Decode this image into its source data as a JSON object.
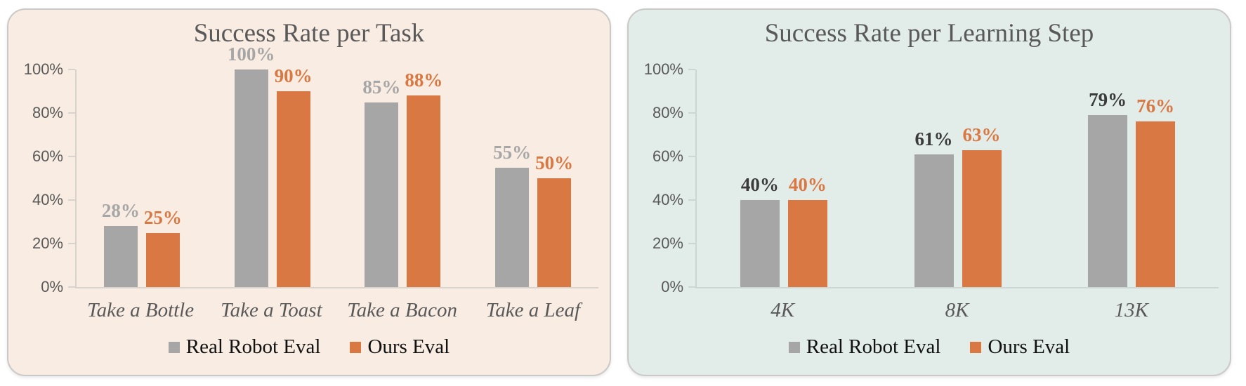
{
  "canvas": {
    "background": "#ffffff"
  },
  "chart_data": [
    {
      "type": "bar",
      "title": "Success Rate per Task",
      "panel_background": "#f9ece2",
      "categories": [
        "Take a Bottle",
        "Take a Toast",
        "Take a Bacon",
        "Take a Leaf"
      ],
      "series": [
        {
          "name": "Real Robot Eval",
          "color": "#a6a6a6",
          "label_color": "#a6a6a6",
          "values": [
            28,
            100,
            85,
            55
          ]
        },
        {
          "name": "Ours Eval",
          "color": "#d97842",
          "label_color": "#d97842",
          "values": [
            25,
            90,
            88,
            50
          ]
        }
      ],
      "yticks": [
        "100%",
        "80%",
        "60%",
        "40%",
        "20%",
        "0%"
      ],
      "ylim": [
        0,
        100
      ],
      "data_label_suffix": "%",
      "grid": false,
      "legend_position": "bottom",
      "text_color": "#595959"
    },
    {
      "type": "bar",
      "title": "Success Rate per Learning Step",
      "panel_background": "#e2ece9",
      "categories": [
        "4K",
        "8K",
        "13K"
      ],
      "series": [
        {
          "name": "Real Robot Eval",
          "color": "#a6a6a6",
          "label_color": "#3b3b3b",
          "values": [
            40,
            61,
            79
          ]
        },
        {
          "name": "Ours Eval",
          "color": "#d97842",
          "label_color": "#d97842",
          "values": [
            40,
            63,
            76
          ]
        }
      ],
      "yticks": [
        "100%",
        "80%",
        "60%",
        "40%",
        "20%",
        "0%"
      ],
      "ylim": [
        0,
        100
      ],
      "data_label_suffix": "%",
      "grid": false,
      "legend_position": "bottom",
      "text_color": "#595959"
    }
  ]
}
